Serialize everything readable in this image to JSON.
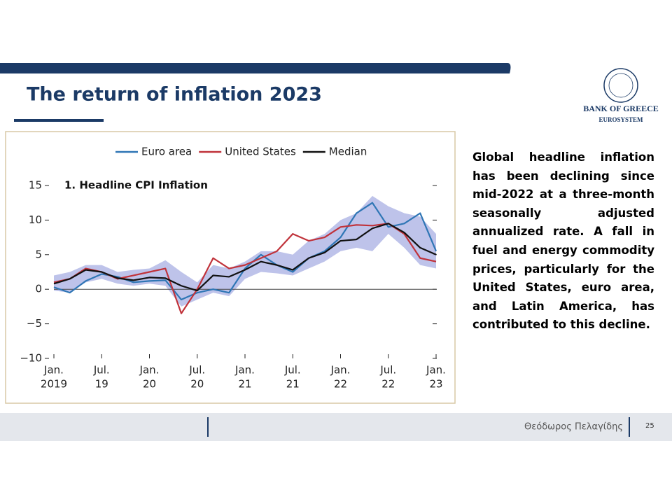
{
  "slide": {
    "title": "The return of inflation 2023",
    "logo_name": "BANK OF GREECE",
    "logo_sub": "EUROSYSTEM",
    "text": "Global headline inflation has been declining since mid-2022 at a three-month seasonally adjusted annualized rate. A fall in fuel and energy commodity prices, particularly for the United States, euro area, and Latin America, has contributed to this decline.",
    "footer_name": "Θεόδωρος Πελαγίδης",
    "page": "25"
  },
  "chart_data": {
    "type": "line",
    "subtitle": "1. Headline CPI Inflation",
    "x": [
      "2019-01",
      "2019-03",
      "2019-05",
      "2019-07",
      "2019-09",
      "2019-11",
      "2020-01",
      "2020-03",
      "2020-05",
      "2020-07",
      "2020-09",
      "2020-11",
      "2021-01",
      "2021-03",
      "2021-05",
      "2021-07",
      "2021-09",
      "2021-11",
      "2022-01",
      "2022-03",
      "2022-05",
      "2022-07",
      "2022-09",
      "2022-11",
      "2023-01"
    ],
    "xlim": [
      "2019-01",
      "2023-01"
    ],
    "xticks": [
      {
        "value": "2019-01",
        "label": [
          "Jan.",
          "2019"
        ]
      },
      {
        "value": "2019-07",
        "label": [
          "Jul.",
          "19"
        ]
      },
      {
        "value": "2020-01",
        "label": [
          "Jan.",
          "20"
        ]
      },
      {
        "value": "2020-07",
        "label": [
          "Jul.",
          "20"
        ]
      },
      {
        "value": "2021-01",
        "label": [
          "Jan.",
          "21"
        ]
      },
      {
        "value": "2021-07",
        "label": [
          "Jul.",
          "21"
        ]
      },
      {
        "value": "2022-01",
        "label": [
          "Jan.",
          "22"
        ]
      },
      {
        "value": "2022-07",
        "label": [
          "Jul.",
          "22"
        ]
      },
      {
        "value": "2023-01",
        "label": [
          "Jan.",
          "23"
        ]
      }
    ],
    "ylim": [
      -10,
      15
    ],
    "yticks": [
      15,
      10,
      5,
      0,
      {
        "value": -5,
        "label": "−5"
      },
      {
        "value": -10,
        "label": "−10"
      }
    ],
    "legend": "top",
    "band": {
      "color": "#b3b9e6",
      "lower": [
        -0.2,
        -0.5,
        1,
        1.5,
        0.8,
        0.5,
        0.8,
        0.5,
        -2.5,
        -1.5,
        -0.5,
        -1,
        1.5,
        2.5,
        2.3,
        2,
        3,
        4,
        5.5,
        6,
        5.5,
        8,
        6,
        3.5,
        3
      ],
      "upper": [
        2,
        2.5,
        3.5,
        3.5,
        2.5,
        2.8,
        3,
        4.2,
        2.5,
        1,
        3.5,
        3,
        4,
        5.5,
        5.5,
        5,
        7,
        8,
        10,
        11,
        13.5,
        12,
        11,
        10.5,
        8
      ]
    },
    "series": [
      {
        "name": "Euro area",
        "color": "#2f76b5",
        "values": [
          0.3,
          -0.5,
          1.2,
          2.2,
          1.8,
          1.0,
          1.2,
          1.3,
          -1.5,
          -0.5,
          0,
          -0.5,
          3,
          5,
          3.5,
          2.5,
          4.5,
          5.5,
          7.5,
          11,
          12.5,
          9,
          9.5,
          11,
          5.5
        ]
      },
      {
        "name": "United States",
        "color": "#c0323a",
        "values": [
          1,
          1.5,
          3,
          2.5,
          1.5,
          2,
          2.5,
          3,
          -3.5,
          0,
          4.5,
          3,
          3.5,
          4.5,
          5.5,
          8,
          7,
          7.5,
          9,
          9.3,
          9.2,
          9.5,
          8,
          4.5,
          4
        ]
      },
      {
        "name": "Median",
        "color": "#111111",
        "values": [
          0.8,
          1.5,
          2.8,
          2.5,
          1.6,
          1.3,
          1.7,
          1.6,
          0.5,
          -0.2,
          2.0,
          1.8,
          2.8,
          4,
          3.5,
          2.8,
          4.5,
          5.3,
          7,
          7.2,
          8.8,
          9.5,
          8.2,
          6.0,
          5.0
        ]
      }
    ]
  }
}
